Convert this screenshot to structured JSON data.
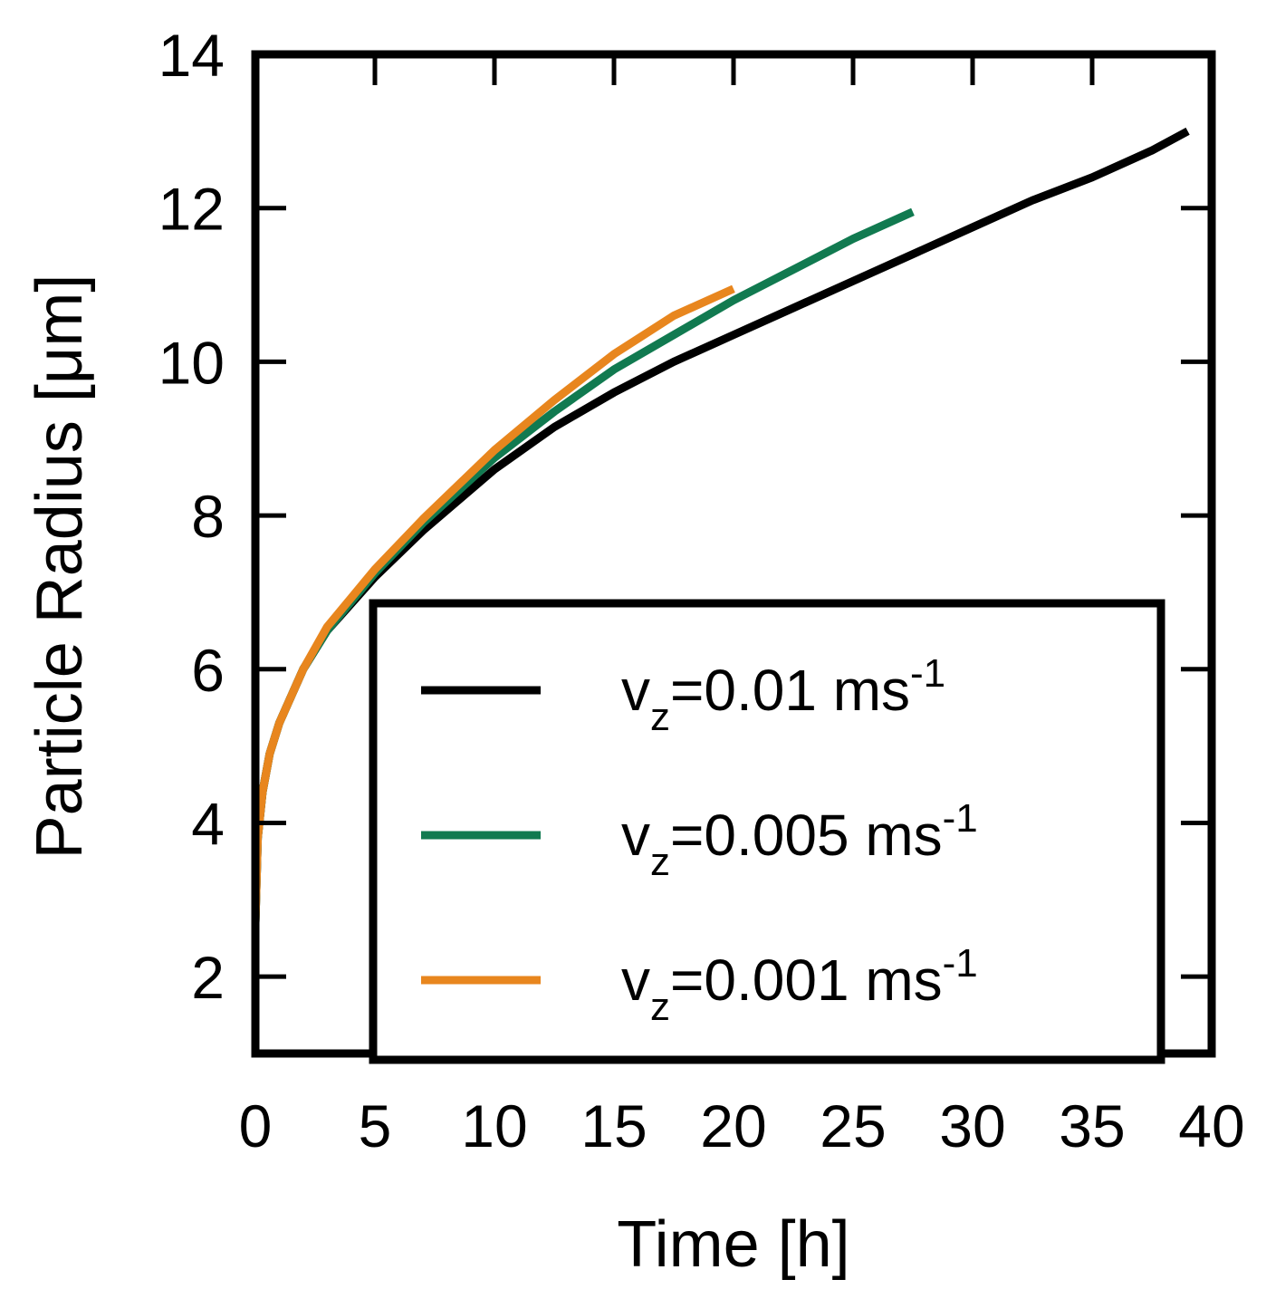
{
  "chart_data": {
    "type": "line",
    "title": "",
    "xlabel": "Time [h]",
    "ylabel": "Particle Radius [μm]",
    "xlim": [
      0,
      40
    ],
    "ylim": [
      1,
      14
    ],
    "xticks": [
      0,
      5,
      10,
      15,
      20,
      25,
      30,
      35,
      40
    ],
    "yticks": [
      2,
      4,
      6,
      8,
      10,
      12,
      14
    ],
    "grid": false,
    "legend_position": "bottom-right",
    "series": [
      {
        "name": "v_z=0.01 ms^-1",
        "label": {
          "main": "v",
          "sub": "z",
          "value": "=0.01 ms",
          "sup": "-1"
        },
        "color": "#000000",
        "x": [
          0,
          0.1,
          0.3,
          0.6,
          1,
          2,
          3,
          5,
          7,
          10,
          12.5,
          15,
          17.5,
          20,
          22.5,
          25,
          27.5,
          30,
          32.5,
          35,
          37.5,
          39
        ],
        "y": [
          2.7,
          3.8,
          4.4,
          4.9,
          5.3,
          6.0,
          6.5,
          7.2,
          7.8,
          8.6,
          9.15,
          9.6,
          10.0,
          10.35,
          10.7,
          11.05,
          11.4,
          11.75,
          12.1,
          12.4,
          12.75,
          13.0
        ]
      },
      {
        "name": "v_z=0.005 ms^-1",
        "label": {
          "main": "v",
          "sub": "z",
          "value": "=0.005 ms",
          "sup": "-1"
        },
        "color": "#117a50",
        "x": [
          0,
          0.1,
          0.3,
          0.6,
          1,
          2,
          3,
          5,
          7,
          10,
          12.5,
          15,
          17.5,
          20,
          22.5,
          25,
          27.5
        ],
        "y": [
          2.7,
          3.8,
          4.4,
          4.9,
          5.3,
          6.0,
          6.5,
          7.25,
          7.9,
          8.75,
          9.35,
          9.9,
          10.35,
          10.8,
          11.2,
          11.6,
          11.95
        ]
      },
      {
        "name": "v_z=0.001 ms^-1",
        "label": {
          "main": "v",
          "sub": "z",
          "value": "=0.001 ms",
          "sup": "-1"
        },
        "color": "#e8861e",
        "x": [
          0,
          0.1,
          0.3,
          0.6,
          1,
          2,
          3,
          5,
          7,
          10,
          12.5,
          15,
          17.5,
          20
        ],
        "y": [
          2.7,
          3.8,
          4.4,
          4.9,
          5.3,
          6.0,
          6.55,
          7.3,
          7.95,
          8.85,
          9.5,
          10.1,
          10.6,
          10.95
        ]
      }
    ]
  }
}
